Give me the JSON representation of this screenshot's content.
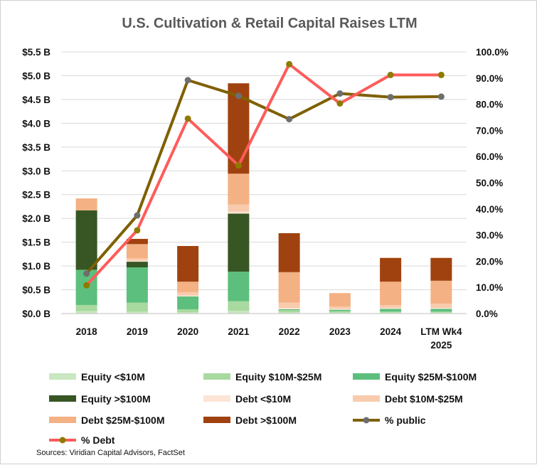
{
  "chart_data": {
    "type": "bar",
    "title": "U.S. Cultivation & Retail Capital Raises LTM",
    "categories": [
      "2018",
      "2019",
      "2020",
      "2021",
      "2022",
      "2023",
      "2024",
      "LTM Wk4|2025"
    ],
    "ylim": [
      0,
      5.5
    ],
    "y2lim": [
      0,
      100
    ],
    "y_ticks": [
      "$0.0 B",
      "$0.5 B",
      "$1.0 B",
      "$1.5 B",
      "$2.0 B",
      "$2.5 B",
      "$3.0 B",
      "$3.5 B",
      "$4.0 B",
      "$4.5 B",
      "$5.0 B",
      "$5.5 B"
    ],
    "y2_ticks": [
      "0.0%",
      "10.0%",
      "20.0%",
      "30.0%",
      "40.0%",
      "50.0%",
      "60.0%",
      "70.0%",
      "80.0%",
      "90.0%",
      "100.0%"
    ],
    "series": [
      {
        "name": "Equity <$10M",
        "kind": "bar",
        "color": "#c9e7c1",
        "values": [
          0.05,
          0.04,
          0.03,
          0.06,
          0.03,
          0.02,
          0.02,
          0.02
        ]
      },
      {
        "name": "Equity $10M-$25M",
        "kind": "bar",
        "color": "#a8d99e",
        "values": [
          0.13,
          0.19,
          0.06,
          0.2,
          0.04,
          0.03,
          0.02,
          0.02
        ]
      },
      {
        "name": "Equity $25M-$100M",
        "kind": "bar",
        "color": "#5cbf7d",
        "values": [
          0.74,
          0.74,
          0.27,
          0.62,
          0.02,
          0.03,
          0.06,
          0.06
        ]
      },
      {
        "name": "Equity >$100M",
        "kind": "bar",
        "color": "#375623",
        "values": [
          1.25,
          0.12,
          0,
          1.22,
          0,
          0,
          0,
          0
        ]
      },
      {
        "name": "Debt <$10M",
        "kind": "bar",
        "color": "#fce4d6",
        "values": [
          0,
          0.02,
          0.02,
          0.04,
          0.03,
          0.02,
          0.02,
          0.02
        ]
      },
      {
        "name": "Debt $10M-$25M",
        "kind": "bar",
        "color": "#f8cbad",
        "values": [
          0,
          0.05,
          0.07,
          0.15,
          0.11,
          0.05,
          0.06,
          0.09
        ]
      },
      {
        "name": "Debt $25M-$100M",
        "kind": "bar",
        "color": "#f4b183",
        "values": [
          0.25,
          0.3,
          0.22,
          0.65,
          0.64,
          0.28,
          0.49,
          0.48
        ]
      },
      {
        "name": "Debt >$100M",
        "kind": "bar",
        "color": "#a0420f",
        "values": [
          0,
          0.11,
          0.75,
          1.9,
          0.82,
          0,
          0.5,
          0.48
        ]
      },
      {
        "name": "% public",
        "kind": "line",
        "axis": "right",
        "color": "#7f6000",
        "marker": "#6e6e6e",
        "values": [
          15.3,
          37.5,
          89.2,
          83.2,
          74.3,
          84.1,
          82.7,
          82.9
        ]
      },
      {
        "name": "% Debt",
        "kind": "line",
        "axis": "right",
        "color": "#ff5b5b",
        "marker": "#8f7a00",
        "values": [
          10.8,
          31.8,
          74.5,
          56.6,
          95.3,
          80.3,
          91.2,
          91.2
        ]
      }
    ],
    "legend_position": "bottom",
    "grid": true
  },
  "footer": {
    "source": "Sources: Viridian Capital Advisors, FactSet"
  }
}
